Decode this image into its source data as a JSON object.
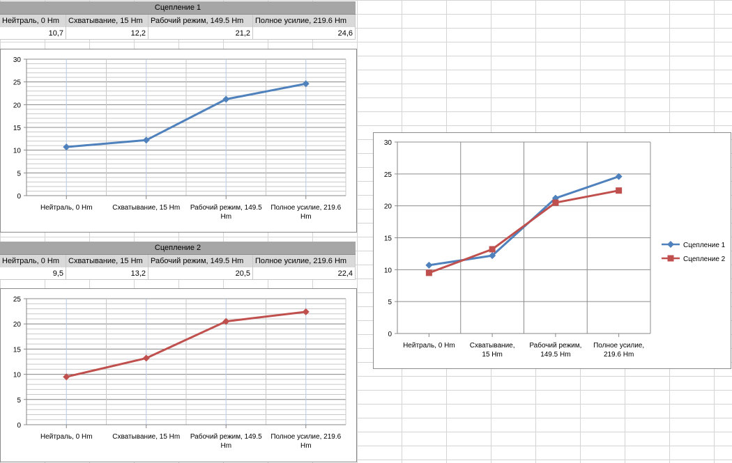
{
  "tables": [
    {
      "title": "Сцепление 1",
      "headers": [
        "Нейтраль, 0 Нm",
        "Схватывание, 15 Нm",
        "Рабочий режим, 149.5 Нm",
        "Полное усилие, 219.6 Нm"
      ],
      "values": [
        "10,7",
        "12,2",
        "21,2",
        "24,6"
      ]
    },
    {
      "title": "Сцепление 2",
      "headers": [
        "Нейтраль, 0 Нm",
        "Схватывание, 15 Нm",
        "Рабочий режим, 149.5 Нm",
        "Полное усилие, 219.6 Нm"
      ],
      "values": [
        "9,5",
        "13,2",
        "20,5",
        "22,4"
      ]
    }
  ],
  "colors": {
    "series1": "#4f81bd",
    "series2": "#c0504d",
    "gridline": "#bfbfbf",
    "axis": "#868686"
  },
  "chart_data": [
    {
      "type": "line",
      "categories": [
        "Нейтраль, 0 Нm",
        "Схватывание, 15 Нm",
        "Рабочий режим, 149.5 Нm",
        "Полное усилие, 219.6 Нm"
      ],
      "series": [
        {
          "values": [
            10.7,
            12.2,
            21.2,
            24.6
          ],
          "color": "#4f81bd",
          "marker": "diamond"
        }
      ],
      "ylim": [
        0,
        30
      ],
      "yticks": [
        0,
        5,
        10,
        15,
        20,
        25,
        30
      ],
      "grid": true,
      "legend": "none"
    },
    {
      "type": "line",
      "categories": [
        "Нейтраль, 0 Нm",
        "Схватывание, 15 Нm",
        "Рабочий режим, 149.5 Нm",
        "Полное усилие, 219.6 Нm"
      ],
      "series": [
        {
          "values": [
            9.5,
            13.2,
            20.5,
            22.4
          ],
          "color": "#c0504d",
          "marker": "diamond"
        }
      ],
      "ylim": [
        0,
        25
      ],
      "yticks": [
        0,
        5,
        10,
        15,
        20,
        25
      ],
      "grid": true,
      "legend": "none"
    },
    {
      "type": "line",
      "categories": [
        "Нейтраль, 0 Нm",
        "Схватывание, 15 Нm",
        "Рабочий режим, 149.5 Нm",
        "Полное усилие, 219.6 Нm"
      ],
      "series": [
        {
          "name": "Сцепление 1",
          "values": [
            10.7,
            12.2,
            21.2,
            24.6
          ],
          "color": "#4f81bd",
          "marker": "diamond"
        },
        {
          "name": "Сцепление 2",
          "values": [
            9.5,
            13.2,
            20.5,
            22.4
          ],
          "color": "#c0504d",
          "marker": "square"
        }
      ],
      "ylim": [
        0,
        30
      ],
      "yticks": [
        0,
        5,
        10,
        15,
        20,
        25,
        30
      ],
      "grid": true,
      "legend": "right"
    }
  ]
}
